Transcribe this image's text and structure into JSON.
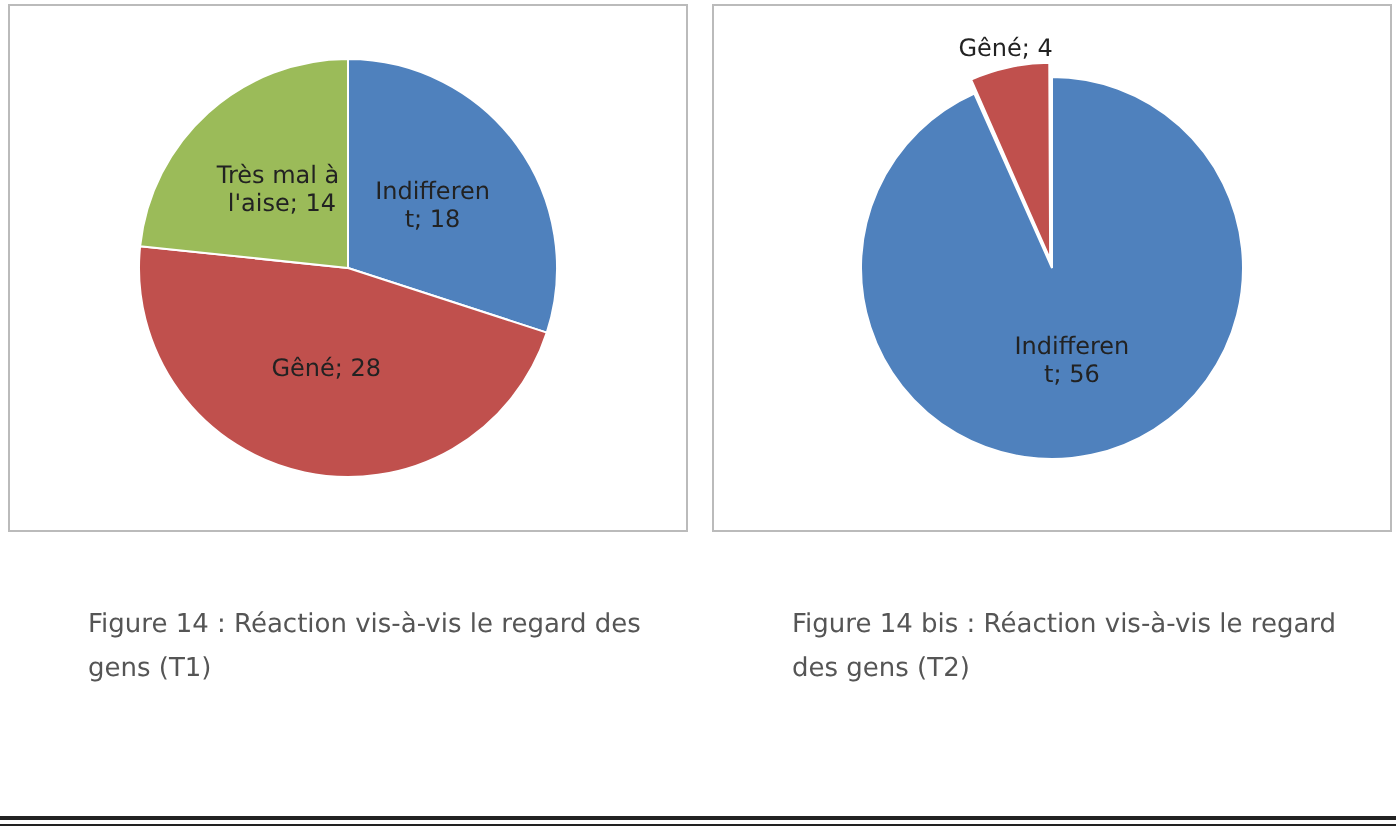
{
  "chart_data": [
    {
      "type": "pie",
      "title": "Figure 14 : Réaction vis-à-vis le regard des gens  (T1)",
      "categories": [
        "Indifferent",
        "Gêné",
        "Très mal à l'aise"
      ],
      "values": [
        18,
        28,
        14
      ],
      "colors": [
        "#4f81bd",
        "#c0504d",
        "#9bbb59"
      ],
      "value_labels": [
        "; 18",
        "; 28",
        "; 14"
      ],
      "legend": false
    },
    {
      "type": "pie",
      "title": "Figure 14 bis : Réaction vis-à-vis le regard des gens  (T2)",
      "categories": [
        "Indifferent",
        "Gêné"
      ],
      "values": [
        56,
        4
      ],
      "colors": [
        "#4f81bd",
        "#c0504d"
      ],
      "value_labels": [
        "; 56",
        "; 4"
      ],
      "legend": false
    }
  ]
}
